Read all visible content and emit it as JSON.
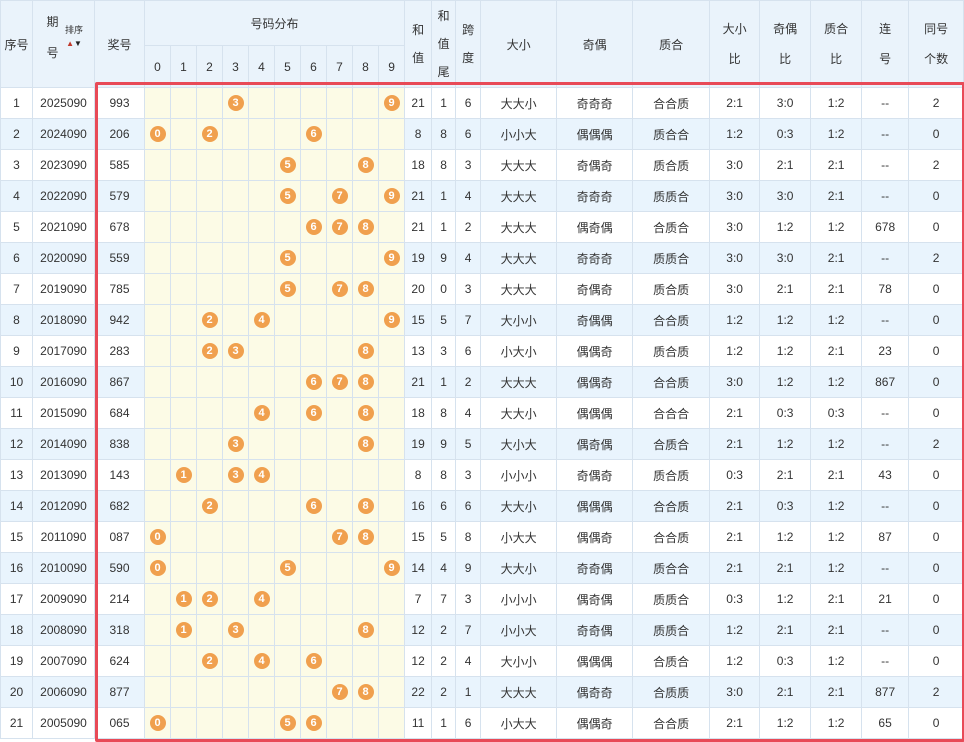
{
  "header": {
    "seq": "序号",
    "period_top": "期",
    "period_bottom": "号",
    "sort_label": "排序",
    "sort_up": "▲",
    "sort_down": "▼",
    "award": "奖号",
    "distribution": "号码分布",
    "digits": [
      "0",
      "1",
      "2",
      "3",
      "4",
      "5",
      "6",
      "7",
      "8",
      "9"
    ],
    "sum": "和值",
    "sum_tail": [
      "和",
      "值",
      "尾"
    ],
    "span": "跨度",
    "big_small": "大小",
    "odd_even": "奇偶",
    "prime_comp": "质合",
    "big_small_ratio": "大小比",
    "odd_even_ratio": "奇偶比",
    "prime_comp_ratio": "质合比",
    "consecutive": "连号",
    "same_count": "同号个数"
  },
  "rows": [
    {
      "seq": "1",
      "period": "2025090",
      "award": "993",
      "balls": [
        3,
        9
      ],
      "sum": "21",
      "tail": "1",
      "span": "6",
      "bs": "大大小",
      "oe": "奇奇奇",
      "pc": "合合质",
      "bsr": "2:1",
      "oer": "3:0",
      "pcr": "1:2",
      "lian": "--",
      "same": "2"
    },
    {
      "seq": "2",
      "period": "2024090",
      "award": "206",
      "balls": [
        0,
        2,
        6
      ],
      "sum": "8",
      "tail": "8",
      "span": "6",
      "bs": "小小大",
      "oe": "偶偶偶",
      "pc": "质合合",
      "bsr": "1:2",
      "oer": "0:3",
      "pcr": "1:2",
      "lian": "--",
      "same": "0"
    },
    {
      "seq": "3",
      "period": "2023090",
      "award": "585",
      "balls": [
        5,
        8
      ],
      "sum": "18",
      "tail": "8",
      "span": "3",
      "bs": "大大大",
      "oe": "奇偶奇",
      "pc": "质合质",
      "bsr": "3:0",
      "oer": "2:1",
      "pcr": "2:1",
      "lian": "--",
      "same": "2"
    },
    {
      "seq": "4",
      "period": "2022090",
      "award": "579",
      "balls": [
        5,
        7,
        9
      ],
      "sum": "21",
      "tail": "1",
      "span": "4",
      "bs": "大大大",
      "oe": "奇奇奇",
      "pc": "质质合",
      "bsr": "3:0",
      "oer": "3:0",
      "pcr": "2:1",
      "lian": "--",
      "same": "0"
    },
    {
      "seq": "5",
      "period": "2021090",
      "award": "678",
      "balls": [
        6,
        7,
        8
      ],
      "sum": "21",
      "tail": "1",
      "span": "2",
      "bs": "大大大",
      "oe": "偶奇偶",
      "pc": "合质合",
      "bsr": "3:0",
      "oer": "1:2",
      "pcr": "1:2",
      "lian": "678",
      "same": "0"
    },
    {
      "seq": "6",
      "period": "2020090",
      "award": "559",
      "balls": [
        5,
        9
      ],
      "sum": "19",
      "tail": "9",
      "span": "4",
      "bs": "大大大",
      "oe": "奇奇奇",
      "pc": "质质合",
      "bsr": "3:0",
      "oer": "3:0",
      "pcr": "2:1",
      "lian": "--",
      "same": "2"
    },
    {
      "seq": "7",
      "period": "2019090",
      "award": "785",
      "balls": [
        5,
        7,
        8
      ],
      "sum": "20",
      "tail": "0",
      "span": "3",
      "bs": "大大大",
      "oe": "奇偶奇",
      "pc": "质合质",
      "bsr": "3:0",
      "oer": "2:1",
      "pcr": "2:1",
      "lian": "78",
      "same": "0"
    },
    {
      "seq": "8",
      "period": "2018090",
      "award": "942",
      "balls": [
        2,
        4,
        9
      ],
      "sum": "15",
      "tail": "5",
      "span": "7",
      "bs": "大小小",
      "oe": "奇偶偶",
      "pc": "合合质",
      "bsr": "1:2",
      "oer": "1:2",
      "pcr": "1:2",
      "lian": "--",
      "same": "0"
    },
    {
      "seq": "9",
      "period": "2017090",
      "award": "283",
      "balls": [
        2,
        3,
        8
      ],
      "sum": "13",
      "tail": "3",
      "span": "6",
      "bs": "小大小",
      "oe": "偶偶奇",
      "pc": "质合质",
      "bsr": "1:2",
      "oer": "1:2",
      "pcr": "2:1",
      "lian": "23",
      "same": "0"
    },
    {
      "seq": "10",
      "period": "2016090",
      "award": "867",
      "balls": [
        6,
        7,
        8
      ],
      "sum": "21",
      "tail": "1",
      "span": "2",
      "bs": "大大大",
      "oe": "偶偶奇",
      "pc": "合合质",
      "bsr": "3:0",
      "oer": "1:2",
      "pcr": "1:2",
      "lian": "867",
      "same": "0"
    },
    {
      "seq": "11",
      "period": "2015090",
      "award": "684",
      "balls": [
        4,
        6,
        8
      ],
      "sum": "18",
      "tail": "8",
      "span": "4",
      "bs": "大大小",
      "oe": "偶偶偶",
      "pc": "合合合",
      "bsr": "2:1",
      "oer": "0:3",
      "pcr": "0:3",
      "lian": "--",
      "same": "0"
    },
    {
      "seq": "12",
      "period": "2014090",
      "award": "838",
      "balls": [
        3,
        8
      ],
      "sum": "19",
      "tail": "9",
      "span": "5",
      "bs": "大小大",
      "oe": "偶奇偶",
      "pc": "合质合",
      "bsr": "2:1",
      "oer": "1:2",
      "pcr": "1:2",
      "lian": "--",
      "same": "2"
    },
    {
      "seq": "13",
      "period": "2013090",
      "award": "143",
      "balls": [
        1,
        3,
        4
      ],
      "sum": "8",
      "tail": "8",
      "span": "3",
      "bs": "小小小",
      "oe": "奇偶奇",
      "pc": "质合质",
      "bsr": "0:3",
      "oer": "2:1",
      "pcr": "2:1",
      "lian": "43",
      "same": "0"
    },
    {
      "seq": "14",
      "period": "2012090",
      "award": "682",
      "balls": [
        2,
        6,
        8
      ],
      "sum": "16",
      "tail": "6",
      "span": "6",
      "bs": "大大小",
      "oe": "偶偶偶",
      "pc": "合合质",
      "bsr": "2:1",
      "oer": "0:3",
      "pcr": "1:2",
      "lian": "--",
      "same": "0"
    },
    {
      "seq": "15",
      "period": "2011090",
      "award": "087",
      "balls": [
        0,
        7,
        8
      ],
      "sum": "15",
      "tail": "5",
      "span": "8",
      "bs": "小大大",
      "oe": "偶偶奇",
      "pc": "合合质",
      "bsr": "2:1",
      "oer": "1:2",
      "pcr": "1:2",
      "lian": "87",
      "same": "0"
    },
    {
      "seq": "16",
      "period": "2010090",
      "award": "590",
      "balls": [
        0,
        5,
        9
      ],
      "sum": "14",
      "tail": "4",
      "span": "9",
      "bs": "大大小",
      "oe": "奇奇偶",
      "pc": "质合合",
      "bsr": "2:1",
      "oer": "2:1",
      "pcr": "1:2",
      "lian": "--",
      "same": "0"
    },
    {
      "seq": "17",
      "period": "2009090",
      "award": "214",
      "balls": [
        1,
        2,
        4
      ],
      "sum": "7",
      "tail": "7",
      "span": "3",
      "bs": "小小小",
      "oe": "偶奇偶",
      "pc": "质质合",
      "bsr": "0:3",
      "oer": "1:2",
      "pcr": "2:1",
      "lian": "21",
      "same": "0"
    },
    {
      "seq": "18",
      "period": "2008090",
      "award": "318",
      "balls": [
        1,
        3,
        8
      ],
      "sum": "12",
      "tail": "2",
      "span": "7",
      "bs": "小小大",
      "oe": "奇奇偶",
      "pc": "质质合",
      "bsr": "1:2",
      "oer": "2:1",
      "pcr": "2:1",
      "lian": "--",
      "same": "0"
    },
    {
      "seq": "19",
      "period": "2007090",
      "award": "624",
      "balls": [
        2,
        4,
        6
      ],
      "sum": "12",
      "tail": "2",
      "span": "4",
      "bs": "大小小",
      "oe": "偶偶偶",
      "pc": "合质合",
      "bsr": "1:2",
      "oer": "0:3",
      "pcr": "1:2",
      "lian": "--",
      "same": "0"
    },
    {
      "seq": "20",
      "period": "2006090",
      "award": "877",
      "balls": [
        7,
        8
      ],
      "sum": "22",
      "tail": "2",
      "span": "1",
      "bs": "大大大",
      "oe": "偶奇奇",
      "pc": "合质质",
      "bsr": "3:0",
      "oer": "2:1",
      "pcr": "2:1",
      "lian": "877",
      "same": "2"
    },
    {
      "seq": "21",
      "period": "2005090",
      "award": "065",
      "balls": [
        0,
        5,
        6
      ],
      "sum": "11",
      "tail": "1",
      "span": "6",
      "bs": "小大大",
      "oe": "偶偶奇",
      "pc": "合合质",
      "bsr": "2:1",
      "oer": "1:2",
      "pcr": "1:2",
      "lian": "65",
      "same": "0"
    }
  ],
  "colors": {
    "ball": "#f0a04e",
    "highlight_frame": "#e84a57",
    "header_bg": "#eaf3fb",
    "dist_bg": "#fcfbe6",
    "row_alt": "#e9f4fd"
  }
}
